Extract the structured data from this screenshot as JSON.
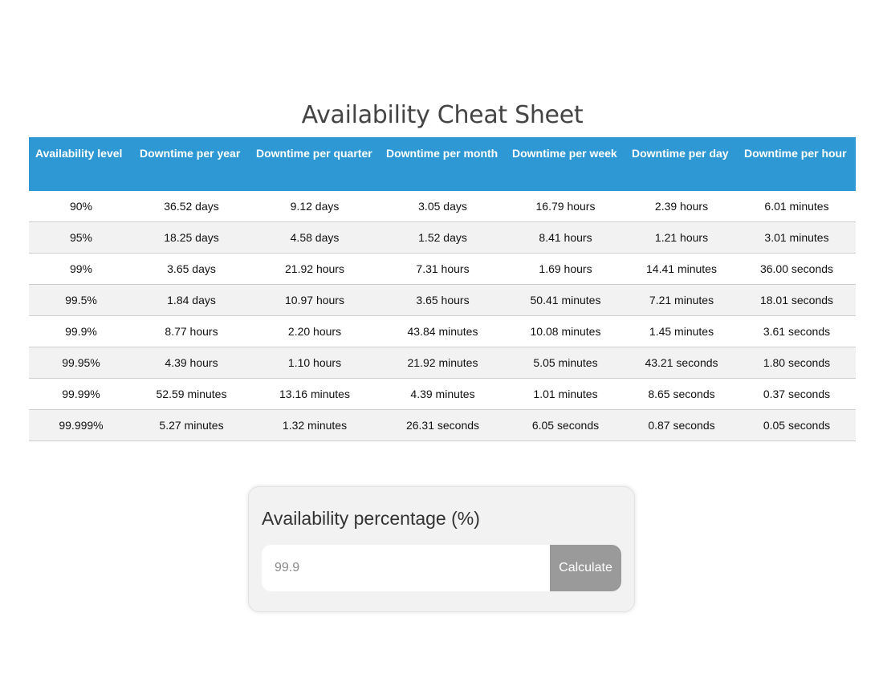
{
  "title": "Availability Cheat Sheet",
  "table": {
    "headers": [
      "Availability level",
      "Downtime per year",
      "Downtime per quarter",
      "Downtime per month",
      "Downtime per week",
      "Downtime per day",
      "Downtime per hour"
    ],
    "rows": [
      [
        "90%",
        "36.52 days",
        "9.12 days",
        "3.05 days",
        "16.79 hours",
        "2.39 hours",
        "6.01 minutes"
      ],
      [
        "95%",
        "18.25 days",
        "4.58 days",
        "1.52 days",
        "8.41 hours",
        "1.21 hours",
        "3.01 minutes"
      ],
      [
        "99%",
        "3.65 days",
        "21.92 hours",
        "7.31 hours",
        "1.69 hours",
        "14.41 minutes",
        "36.00 seconds"
      ],
      [
        "99.5%",
        "1.84 days",
        "10.97 hours",
        "3.65 hours",
        "50.41 minutes",
        "7.21 minutes",
        "18.01 seconds"
      ],
      [
        "99.9%",
        "8.77 hours",
        "2.20 hours",
        "43.84 minutes",
        "10.08 minutes",
        "1.45 minutes",
        "3.61 seconds"
      ],
      [
        "99.95%",
        "4.39 hours",
        "1.10 hours",
        "21.92 minutes",
        "5.05 minutes",
        "43.21 seconds",
        "1.80 seconds"
      ],
      [
        "99.99%",
        "52.59 minutes",
        "13.16 minutes",
        "4.39 minutes",
        "1.01 minutes",
        "8.65 seconds",
        "0.37 seconds"
      ],
      [
        "99.999%",
        "5.27 minutes",
        "1.32 minutes",
        "26.31 seconds",
        "6.05 seconds",
        "0.87 seconds",
        "0.05 seconds"
      ]
    ]
  },
  "calculator": {
    "label": "Availability percentage (%)",
    "input_placeholder": "99.9",
    "input_value": "",
    "button_label": "Calculate"
  },
  "colors": {
    "header_bg": "#2e98d4",
    "button_bg": "#9a9a9a"
  }
}
